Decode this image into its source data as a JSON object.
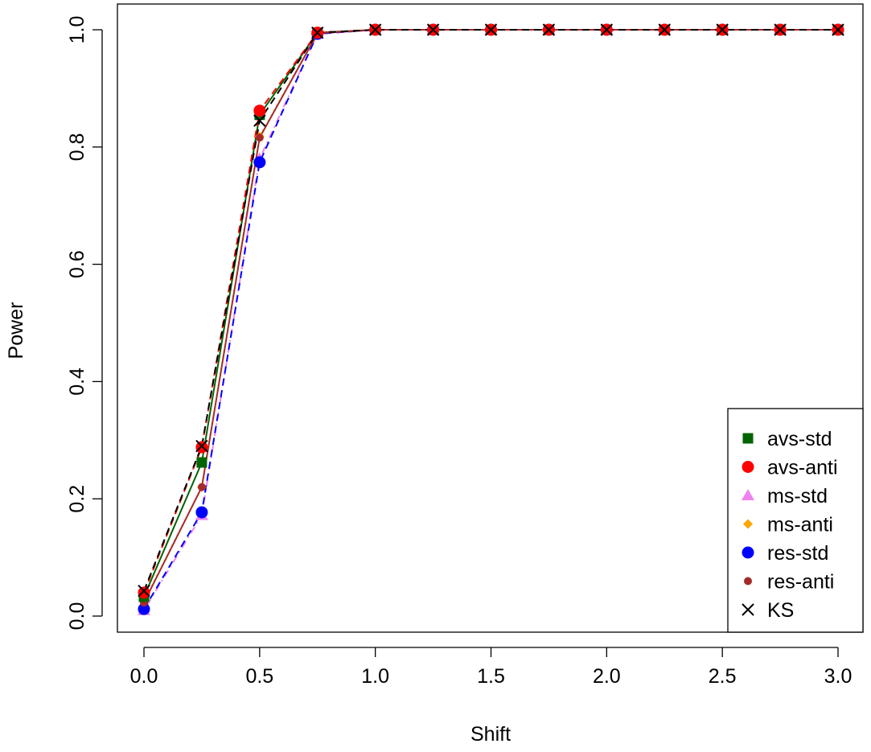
{
  "chart_data": {
    "type": "line",
    "title": "",
    "xlabel": "Shift",
    "ylabel": "Power",
    "xlim": [
      -0.11,
      3.1
    ],
    "ylim": [
      -0.03,
      1.04
    ],
    "xticks": [
      "0.0",
      "0.5",
      "1.0",
      "1.5",
      "2.0",
      "2.5",
      "3.0"
    ],
    "yticks": [
      "0.0",
      "0.2",
      "0.4",
      "0.6",
      "0.8",
      "1.0"
    ],
    "grid": false,
    "legend_position": "bottom-right",
    "x": [
      0,
      0.25,
      0.5,
      0.75,
      1.0,
      1.25,
      1.5,
      1.75,
      2.0,
      2.25,
      2.5,
      2.75,
      3.0
    ],
    "series": [
      {
        "name": "avs-std",
        "color": "#006400",
        "marker": "square",
        "line": "solid",
        "values": [
          0.033,
          0.262,
          0.855,
          0.995,
          1,
          1,
          1,
          1,
          1,
          1,
          1,
          1,
          1
        ]
      },
      {
        "name": "avs-anti",
        "color": "#ff0000",
        "marker": "circle",
        "line": "dashed",
        "values": [
          0.04,
          0.288,
          0.862,
          0.995,
          1,
          1,
          1,
          1,
          1,
          1,
          1,
          1,
          1
        ]
      },
      {
        "name": "ms-std",
        "color": "#ee82ee",
        "marker": "triangle",
        "line": "dotdash",
        "values": [
          0.01,
          0.172,
          0.78,
          0.993,
          1,
          1,
          1,
          1,
          1,
          1,
          1,
          1,
          1
        ]
      },
      {
        "name": "ms-anti",
        "color": "#ffa500",
        "marker": "diamond",
        "line": "dotted",
        "values": [
          0.025,
          0.22,
          0.818,
          0.994,
          1,
          1,
          1,
          1,
          1,
          1,
          1,
          1,
          1
        ]
      },
      {
        "name": "res-std",
        "color": "#0000ff",
        "marker": "circle",
        "line": "dashed",
        "values": [
          0.012,
          0.177,
          0.774,
          0.993,
          1,
          1,
          1,
          1,
          1,
          1,
          1,
          1,
          1
        ]
      },
      {
        "name": "res-anti",
        "color": "#a52a2a",
        "marker": "small-circle",
        "line": "solid",
        "values": [
          0.023,
          0.22,
          0.816,
          0.994,
          1,
          1,
          1,
          1,
          1,
          1,
          1,
          1,
          1
        ]
      },
      {
        "name": "KS",
        "color": "#000000",
        "marker": "cross",
        "line": "dashed",
        "values": [
          0.043,
          0.29,
          0.845,
          0.995,
          1,
          1,
          1,
          1,
          1,
          1,
          1,
          1,
          1
        ]
      }
    ]
  }
}
